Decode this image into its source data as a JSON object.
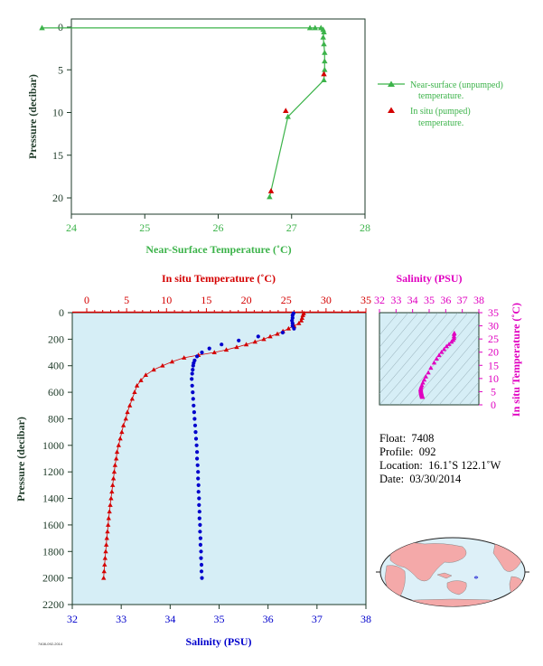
{
  "colors": {
    "green": "#3cb34a",
    "red": "#d40000",
    "blue": "#0000cc",
    "magenta": "#e000c0",
    "panel_bg": "#d6eef6",
    "axis_dark": "#1e3a28"
  },
  "chart_data": [
    {
      "type": "line",
      "ylabel": "Pressure (decibar)",
      "xlabel": "Near-Surface Temperature (˚C)",
      "xlim": [
        24,
        28
      ],
      "ylim": [
        0,
        22
      ],
      "y_inverted": true,
      "x_ticks": [
        "24",
        "25",
        "26",
        "27",
        "28"
      ],
      "y_ticks": [
        "0",
        "5",
        "10",
        "15",
        "20"
      ],
      "legend_placement": "right",
      "series": [
        {
          "name": "Near-surface (unpumped) temperature.",
          "marker": "triangle",
          "color": "green",
          "points": [
            [
              23.6,
              0.1
            ],
            [
              27.25,
              0.1
            ],
            [
              27.32,
              0.1
            ],
            [
              27.4,
              0.1
            ],
            [
              27.43,
              0.3
            ],
            [
              27.44,
              0.6
            ],
            [
              27.43,
              1.2
            ],
            [
              27.44,
              2.0
            ],
            [
              27.45,
              3.0
            ],
            [
              27.45,
              4.0
            ],
            [
              27.45,
              5.0
            ],
            [
              27.44,
              6.2
            ],
            [
              26.95,
              10.5
            ],
            [
              26.7,
              19.9
            ]
          ]
        },
        {
          "name": "In situ (pumped) temperature.",
          "marker": "triangle",
          "color": "red",
          "points": [
            [
              26.92,
              9.8
            ],
            [
              26.72,
              19.2
            ],
            [
              27.44,
              5.5
            ]
          ]
        }
      ]
    },
    {
      "type": "scatter",
      "ylabel": "Pressure (decibar)",
      "xlabel_bottom": "Salinity (PSU)",
      "xlabel_top": "In situ Temperature (˚C)",
      "xlim_salinity": [
        32,
        38
      ],
      "xlim_temperature": [
        0,
        35
      ],
      "ylim": [
        0,
        2200
      ],
      "y_inverted": true,
      "x_ticks_salinity": [
        "32",
        "33",
        "34",
        "35",
        "36",
        "37",
        "38"
      ],
      "x_ticks_temperature": [
        "0",
        "5",
        "10",
        "15",
        "20",
        "25",
        "30",
        "35"
      ],
      "y_ticks": [
        "0",
        "200",
        "400",
        "600",
        "800",
        "1000",
        "1200",
        "1400",
        "1600",
        "1800",
        "2000",
        "2200"
      ],
      "series": [
        {
          "name": "In situ Temperature (˚C)",
          "marker": "triangle",
          "color": "red",
          "points": [
            [
              27.2,
              5
            ],
            [
              27.1,
              20
            ],
            [
              27.0,
              40
            ],
            [
              26.9,
              60
            ],
            [
              26.6,
              80
            ],
            [
              26.0,
              100
            ],
            [
              25.3,
              120
            ],
            [
              24.6,
              140
            ],
            [
              23.9,
              160
            ],
            [
              23.0,
              180
            ],
            [
              22.2,
              200
            ],
            [
              21.1,
              220
            ],
            [
              20.0,
              240
            ],
            [
              18.8,
              260
            ],
            [
              17.5,
              280
            ],
            [
              16.0,
              300
            ],
            [
              14.0,
              320
            ],
            [
              12.2,
              340
            ],
            [
              10.7,
              370
            ],
            [
              9.5,
              400
            ],
            [
              8.4,
              430
            ],
            [
              7.4,
              470
            ],
            [
              6.8,
              510
            ],
            [
              6.3,
              550
            ],
            [
              6.0,
              600
            ],
            [
              5.7,
              650
            ],
            [
              5.4,
              700
            ],
            [
              5.1,
              750
            ],
            [
              4.9,
              800
            ],
            [
              4.6,
              850
            ],
            [
              4.4,
              900
            ],
            [
              4.2,
              950
            ],
            [
              4.0,
              1000
            ],
            [
              3.8,
              1050
            ],
            [
              3.7,
              1100
            ],
            [
              3.55,
              1150
            ],
            [
              3.45,
              1200
            ],
            [
              3.35,
              1250
            ],
            [
              3.25,
              1300
            ],
            [
              3.15,
              1350
            ],
            [
              3.05,
              1400
            ],
            [
              2.95,
              1450
            ],
            [
              2.85,
              1500
            ],
            [
              2.75,
              1550
            ],
            [
              2.68,
              1600
            ],
            [
              2.6,
              1650
            ],
            [
              2.52,
              1700
            ],
            [
              2.45,
              1750
            ],
            [
              2.38,
              1800
            ],
            [
              2.3,
              1850
            ],
            [
              2.24,
              1900
            ],
            [
              2.18,
              1950
            ],
            [
              2.12,
              2000
            ]
          ]
        },
        {
          "name": "Salinity (PSU)",
          "marker": "circle",
          "color": "blue",
          "points": [
            [
              36.52,
              5
            ],
            [
              36.5,
              20
            ],
            [
              36.5,
              40
            ],
            [
              36.49,
              60
            ],
            [
              36.5,
              80
            ],
            [
              36.5,
              100
            ],
            [
              36.53,
              120
            ],
            [
              36.3,
              150
            ],
            [
              35.8,
              180
            ],
            [
              35.4,
              210
            ],
            [
              35.05,
              240
            ],
            [
              34.8,
              270
            ],
            [
              34.65,
              300
            ],
            [
              34.55,
              330
            ],
            [
              34.5,
              360
            ],
            [
              34.48,
              380
            ],
            [
              34.47,
              400
            ],
            [
              34.46,
              430
            ],
            [
              34.45,
              460
            ],
            [
              34.44,
              500
            ],
            [
              34.45,
              550
            ],
            [
              34.46,
              600
            ],
            [
              34.47,
              650
            ],
            [
              34.48,
              700
            ],
            [
              34.49,
              750
            ],
            [
              34.5,
              800
            ],
            [
              34.51,
              850
            ],
            [
              34.52,
              900
            ],
            [
              34.53,
              950
            ],
            [
              34.54,
              1000
            ],
            [
              34.55,
              1050
            ],
            [
              34.55,
              1100
            ],
            [
              34.56,
              1150
            ],
            [
              34.57,
              1200
            ],
            [
              34.57,
              1250
            ],
            [
              34.58,
              1300
            ],
            [
              34.58,
              1350
            ],
            [
              34.59,
              1400
            ],
            [
              34.59,
              1450
            ],
            [
              34.6,
              1500
            ],
            [
              34.6,
              1550
            ],
            [
              34.61,
              1600
            ],
            [
              34.61,
              1650
            ],
            [
              34.62,
              1700
            ],
            [
              34.62,
              1750
            ],
            [
              34.63,
              1800
            ],
            [
              34.63,
              1850
            ],
            [
              34.64,
              1900
            ],
            [
              34.64,
              1950
            ],
            [
              34.65,
              2000
            ]
          ]
        }
      ]
    },
    {
      "type": "scatter",
      "xlabel": "Salinity (PSU)",
      "ylabel": "In situ Temperature (˚C)",
      "xlim": [
        32,
        38
      ],
      "ylim": [
        0,
        35
      ],
      "x_ticks": [
        "32",
        "33",
        "34",
        "35",
        "36",
        "37",
        "38"
      ],
      "y_ticks": [
        "0",
        "5",
        "10",
        "15",
        "20",
        "25",
        "30",
        "35"
      ],
      "series": [
        {
          "marker": "triangle",
          "color": "magenta",
          "points": [
            [
              36.52,
              27.2
            ],
            [
              36.5,
              26.9
            ],
            [
              36.5,
              26.0
            ],
            [
              36.5,
              25.3
            ],
            [
              36.45,
              24.6
            ],
            [
              36.35,
              23.9
            ],
            [
              36.2,
              23.0
            ],
            [
              36.05,
              22.2
            ],
            [
              35.9,
              21.1
            ],
            [
              35.75,
              20.0
            ],
            [
              35.6,
              18.8
            ],
            [
              35.45,
              17.5
            ],
            [
              35.3,
              16.0
            ],
            [
              35.1,
              14.0
            ],
            [
              34.95,
              12.2
            ],
            [
              34.8,
              10.7
            ],
            [
              34.7,
              9.5
            ],
            [
              34.62,
              8.4
            ],
            [
              34.56,
              7.4
            ],
            [
              34.52,
              6.8
            ],
            [
              34.5,
              6.3
            ],
            [
              34.49,
              6.0
            ],
            [
              34.49,
              5.7
            ],
            [
              34.5,
              5.4
            ],
            [
              34.5,
              5.1
            ],
            [
              34.51,
              4.9
            ],
            [
              34.52,
              4.6
            ],
            [
              34.53,
              4.4
            ],
            [
              34.53,
              4.2
            ],
            [
              34.54,
              4.0
            ],
            [
              34.55,
              3.8
            ],
            [
              34.55,
              3.7
            ],
            [
              34.56,
              3.55
            ],
            [
              34.57,
              3.45
            ],
            [
              34.57,
              3.35
            ],
            [
              34.58,
              3.25
            ],
            [
              34.58,
              3.15
            ],
            [
              34.59,
              3.05
            ],
            [
              34.59,
              2.95
            ]
          ]
        }
      ]
    }
  ],
  "info": {
    "float_label": "Float:",
    "float_value": "7408",
    "profile_label": "Profile:",
    "profile_value": "092",
    "location_label": "Location:",
    "location_value": "16.1˚S  122.1˚W",
    "date_label": "Date:",
    "date_value": "03/30/2014"
  },
  "map": {
    "float_position": {
      "lat": -16.1,
      "lon": -122.1
    },
    "marker": "asterisk"
  },
  "footer_tiny": "7408-092-2014"
}
